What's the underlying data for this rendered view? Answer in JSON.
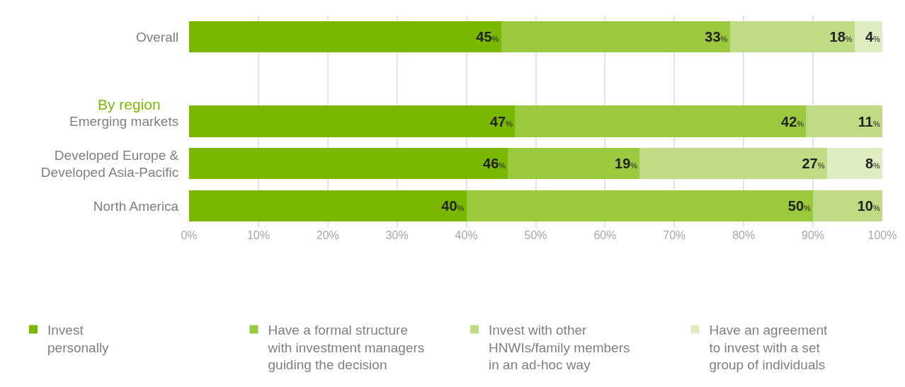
{
  "chart_data": {
    "type": "bar",
    "orientation": "horizontal",
    "stacked": true,
    "categories": [
      "Overall",
      null,
      "Emerging markets",
      "Developed Europe &\nDeveloped Asia-Pacific",
      "North America"
    ],
    "series": [
      {
        "name": "Invest\npersonally",
        "color": "#7ab800",
        "values": [
          45,
          null,
          47,
          46,
          40
        ],
        "value_labels": [
          "45%",
          null,
          "47%",
          "46%",
          "40%"
        ]
      },
      {
        "name": "Have a formal structure\nwith investment managers\nguiding the decision",
        "color": "#9bc93e",
        "values": [
          33,
          null,
          42,
          19,
          50
        ],
        "value_labels": [
          "33%",
          null,
          "42%",
          "19%",
          "50%"
        ]
      },
      {
        "name": "Invest with other\nHNWIs/family members\nin an ad-hoc way",
        "color": "#bfdc84",
        "values": [
          18,
          null,
          11,
          27,
          10
        ],
        "value_labels": [
          "18%",
          null,
          "11%",
          "27%",
          "10%"
        ]
      },
      {
        "name": "Have an agreement\nto invest with a set\ngroup of individuals",
        "color": "#ddedc1",
        "values": [
          4,
          null,
          null,
          8,
          null
        ],
        "value_labels": [
          "4%",
          null,
          null,
          "8%",
          null
        ]
      }
    ],
    "annotations": [
      "By region"
    ],
    "xlim": [
      0,
      100
    ],
    "xticks": [
      {
        "value": 0,
        "label": "0%"
      },
      {
        "value": 10,
        "label": "10%"
      },
      {
        "value": 20,
        "label": "20%"
      },
      {
        "value": 30,
        "label": "30%"
      },
      {
        "value": 40,
        "label": "40%"
      },
      {
        "value": 50,
        "label": "50%"
      },
      {
        "value": 60,
        "label": "60%"
      },
      {
        "value": 70,
        "label": "70%"
      },
      {
        "value": 80,
        "label": "80%"
      },
      {
        "value": 90,
        "label": "90%"
      },
      {
        "value": 100,
        "label": "100%"
      }
    ],
    "grid": "x",
    "legend": "bottom"
  }
}
